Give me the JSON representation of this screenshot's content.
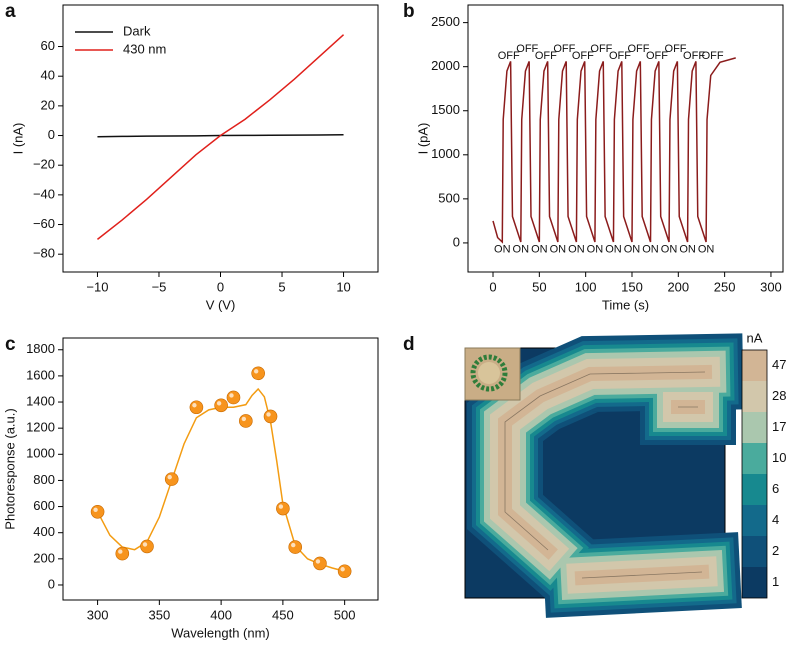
{
  "chart_data": [
    {
      "type": "line",
      "label": "a",
      "xlabel": "V (V)",
      "ylabel": "I (nA)",
      "xlim": [
        -12.8,
        12.8
      ],
      "ylim": [
        -92,
        88
      ],
      "xticks": [
        {
          "value": -10,
          "label": "−10"
        },
        {
          "value": -5,
          "label": "−5"
        },
        0,
        5,
        10
      ],
      "yticks": [
        {
          "value": -80,
          "label": "−80"
        },
        {
          "value": -60,
          "label": "−60"
        },
        {
          "value": -40,
          "label": "−40"
        },
        {
          "value": -20,
          "label": "−20"
        },
        0,
        20,
        40,
        60
      ],
      "x": [
        -10,
        -8,
        -6,
        -4,
        -2,
        0,
        2,
        4,
        6,
        8,
        10
      ],
      "series": [
        {
          "name": "Dark",
          "color": "#111111",
          "values": [
            -0.8,
            -0.6,
            -0.4,
            -0.3,
            -0.2,
            0,
            0.1,
            0.2,
            0.3,
            0.4,
            0.5
          ]
        },
        {
          "name": "430 nm",
          "color": "#e0201b",
          "values": [
            -70,
            -57,
            -43,
            -28,
            -13,
            0,
            11,
            24,
            38,
            53,
            68
          ]
        }
      ]
    },
    {
      "type": "line",
      "label": "b",
      "xlabel": "Time (s)",
      "ylabel": "I (pA)",
      "xlim": [
        -27,
        313
      ],
      "ylim": [
        -330,
        2700
      ],
      "xticks": [
        0,
        50,
        100,
        150,
        200,
        250,
        300
      ],
      "yticks": [
        0,
        500,
        1000,
        1500,
        2000,
        2500
      ],
      "x": [
        0,
        5,
        10,
        11,
        15,
        19,
        21,
        30,
        31,
        35,
        39,
        41,
        50,
        51,
        55,
        59,
        61,
        70,
        71,
        75,
        79,
        81,
        90,
        91,
        95,
        99,
        101,
        110,
        111,
        115,
        119,
        121,
        130,
        131,
        135,
        139,
        141,
        150,
        151,
        155,
        159,
        161,
        170,
        171,
        175,
        179,
        181,
        190,
        191,
        195,
        199,
        201,
        210,
        211,
        215,
        219,
        221,
        230,
        231,
        235,
        245,
        262
      ],
      "series": [
        {
          "color": "#8b1c1c",
          "values": [
            250,
            60,
            10,
            1400,
            1950,
            2060,
            300,
            10,
            1400,
            1950,
            2060,
            300,
            10,
            1400,
            1950,
            2060,
            300,
            10,
            1400,
            1950,
            2060,
            300,
            10,
            1400,
            1950,
            2060,
            300,
            10,
            1400,
            1950,
            2060,
            300,
            10,
            1400,
            1950,
            2060,
            300,
            10,
            1400,
            1950,
            2060,
            300,
            10,
            1400,
            1950,
            2060,
            300,
            10,
            1400,
            1950,
            2060,
            300,
            10,
            1400,
            1950,
            2060,
            300,
            10,
            1400,
            1900,
            2050,
            2100
          ]
        }
      ],
      "annotations": [
        {
          "text": "ON",
          "x": 10,
          "y": -75,
          "color": "#c8262b"
        },
        {
          "text": "ON",
          "x": 30,
          "y": -75,
          "color": "#c8262b"
        },
        {
          "text": "ON",
          "x": 50,
          "y": -75,
          "color": "#c8262b"
        },
        {
          "text": "ON",
          "x": 70,
          "y": -75,
          "color": "#c8262b"
        },
        {
          "text": "ON",
          "x": 90,
          "y": -75,
          "color": "#c8262b"
        },
        {
          "text": "ON",
          "x": 110,
          "y": -75,
          "color": "#c8262b"
        },
        {
          "text": "ON",
          "x": 130,
          "y": -75,
          "color": "#c8262b"
        },
        {
          "text": "ON",
          "x": 150,
          "y": -75,
          "color": "#c8262b"
        },
        {
          "text": "ON",
          "x": 170,
          "y": -75,
          "color": "#c8262b"
        },
        {
          "text": "ON",
          "x": 190,
          "y": -75,
          "color": "#c8262b"
        },
        {
          "text": "ON",
          "x": 210,
          "y": -75,
          "color": "#c8262b"
        },
        {
          "text": "ON",
          "x": 230,
          "y": -75,
          "color": "#c8262b"
        },
        {
          "text": "OFF",
          "x": 17,
          "y": 2120,
          "color": "#3838d0"
        },
        {
          "text": "OFF",
          "x": 37,
          "y": 2200,
          "color": "#3838d0"
        },
        {
          "text": "OFF",
          "x": 57,
          "y": 2120,
          "color": "#3838d0"
        },
        {
          "text": "OFF",
          "x": 77,
          "y": 2200,
          "color": "#3838d0"
        },
        {
          "text": "OFF",
          "x": 97,
          "y": 2120,
          "color": "#3838d0"
        },
        {
          "text": "OFF",
          "x": 117,
          "y": 2200,
          "color": "#3838d0"
        },
        {
          "text": "OFF",
          "x": 137,
          "y": 2120,
          "color": "#3838d0"
        },
        {
          "text": "OFF",
          "x": 157,
          "y": 2200,
          "color": "#3838d0"
        },
        {
          "text": "OFF",
          "x": 177,
          "y": 2120,
          "color": "#3838d0"
        },
        {
          "text": "OFF",
          "x": 197,
          "y": 2200,
          "color": "#3838d0"
        },
        {
          "text": "OFF",
          "x": 217,
          "y": 2120,
          "color": "#3838d0"
        },
        {
          "text": "OFF",
          "x": 237,
          "y": 2120,
          "color": "#3838d0"
        }
      ]
    },
    {
      "type": "scatter",
      "label": "c",
      "xlabel": "Wavelength (nm)",
      "ylabel": "Photoresponse (a.u.)",
      "xlim": [
        272,
        527
      ],
      "ylim": [
        -115,
        1890
      ],
      "xticks": [
        300,
        350,
        400,
        450,
        500
      ],
      "yticks": [
        0,
        200,
        400,
        600,
        800,
        1000,
        1200,
        1400,
        1600,
        1800
      ],
      "x": [
        300,
        320,
        340,
        360,
        380,
        400,
        410,
        420,
        430,
        440,
        450,
        460,
        480,
        500
      ],
      "series": [
        {
          "color": "#f7941d",
          "values": [
            560,
            240,
            295,
            810,
            1360,
            1375,
            1435,
            1255,
            1620,
            1290,
            585,
            290,
            165,
            105
          ]
        }
      ],
      "fit": {
        "color": "#f39c12",
        "x": [
          300,
          310,
          320,
          330,
          340,
          350,
          360,
          370,
          380,
          390,
          400,
          410,
          420,
          425,
          430,
          435,
          440,
          445,
          450,
          460,
          470,
          480,
          490,
          500
        ],
        "values": [
          560,
          380,
          290,
          270,
          330,
          520,
          800,
          1080,
          1280,
          1340,
          1360,
          1360,
          1380,
          1450,
          1500,
          1440,
          1250,
          950,
          620,
          300,
          200,
          160,
          130,
          105
        ]
      }
    },
    {
      "type": "contour",
      "label": "d",
      "colorbar_label": "nA",
      "levels": [
        1,
        2,
        4,
        6,
        10,
        17,
        28,
        47
      ],
      "colors": [
        "#0c3a62",
        "#0f5079",
        "#136a8b",
        "#17898f",
        "#4aab9d",
        "#aac7ae",
        "#d2c7ab",
        "#d2b595"
      ]
    }
  ]
}
